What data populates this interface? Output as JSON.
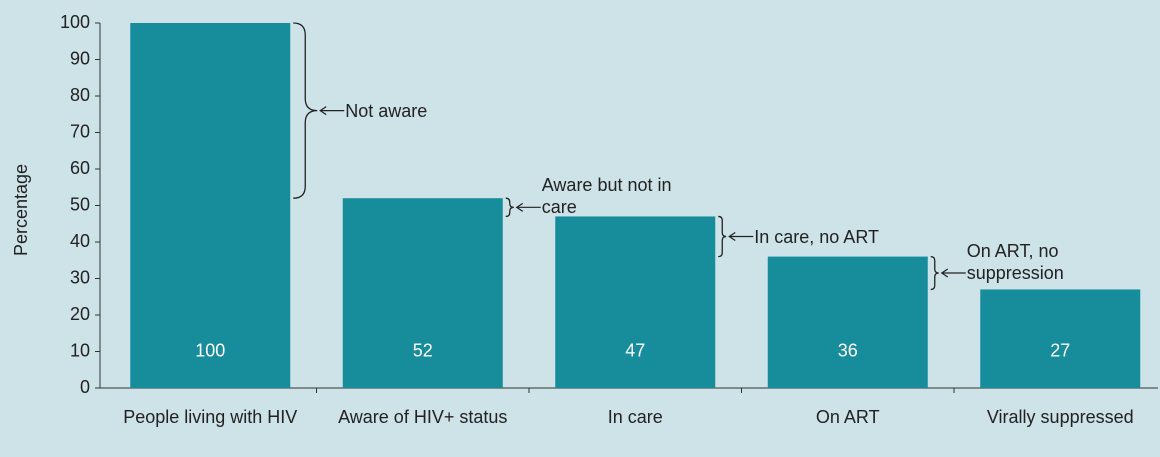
{
  "chart_data": {
    "type": "bar",
    "categories": [
      "People living with HIV",
      "Aware of HIV+ status",
      "In care",
      "On ART",
      "Virally suppressed"
    ],
    "values": [
      100,
      52,
      47,
      36,
      27
    ],
    "color": "#178d9c",
    "y_label": "Percentage",
    "ylim": [
      0,
      100
    ],
    "yticks": [
      0,
      10,
      20,
      30,
      40,
      50,
      60,
      70,
      80,
      90,
      100
    ],
    "annotations": [
      "Not aware",
      "Aware but not in care",
      "In care, no ART",
      "On ART, no suppression"
    ]
  }
}
